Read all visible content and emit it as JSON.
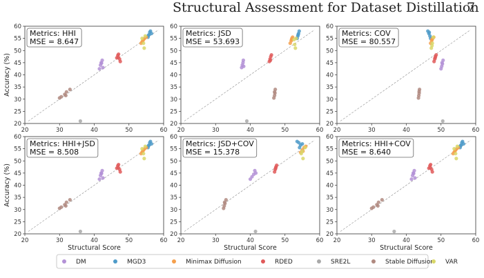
{
  "header": {
    "title": "Structural Assessment for Dataset Distillation",
    "page_number": "7"
  },
  "chart_data": {
    "type": "scatter",
    "xlabel": "Structural Score",
    "ylabel": "Accuracy (%)",
    "xlim": [
      20,
      60
    ],
    "ylim": [
      20,
      60
    ],
    "xticks": [
      20,
      30,
      40,
      50,
      60
    ],
    "yticks": [
      20,
      25,
      30,
      35,
      40,
      45,
      50,
      55,
      60
    ],
    "grid": false,
    "legend_placement": "bottom",
    "reference_line": "dashed diagonal y = x",
    "series_names": [
      "DM",
      "MGD3",
      "Minimax Diffusion",
      "RDED",
      "SRE2L",
      "Stable Diffusion",
      "VAR"
    ],
    "series_colors": [
      "#b391d6",
      "#4f9bc9",
      "#f5a04d",
      "#e05a5a",
      "#a9a9a9",
      "#b08a80",
      "#d9d76a"
    ],
    "panels": [
      {
        "metric_label": "Metrics: HHI",
        "mse_label": "MSE = 8.647",
        "points": {
          "DM": [
            [
              41.5,
              42.5
            ],
            [
              41.8,
              44
            ],
            [
              42,
              45
            ],
            [
              42.3,
              46
            ],
            [
              42.5,
              43
            ],
            [
              42.1,
              44.8
            ]
          ],
          "MGD3": [
            [
              55.5,
              55.5
            ],
            [
              55.8,
              56.5
            ],
            [
              56,
              57.5
            ],
            [
              56.2,
              58
            ],
            [
              56.5,
              57
            ],
            [
              55.6,
              56.2
            ]
          ],
          "Minimax Diffusion": [
            [
              53.5,
              53
            ],
            [
              54,
              54
            ],
            [
              54.5,
              55
            ],
            [
              55,
              55.5
            ],
            [
              54.2,
              54.5
            ],
            [
              53.8,
              53.6
            ]
          ],
          "RDED": [
            [
              46.5,
              47
            ],
            [
              46.8,
              48
            ],
            [
              47,
              48.5
            ],
            [
              47.3,
              46.5
            ],
            [
              47.5,
              45.5
            ],
            [
              46.9,
              47.2
            ]
          ],
          "SRE2L": [
            [
              36,
              21
            ]
          ],
          "Stable Diffusion": [
            [
              30,
              30.5
            ],
            [
              30.5,
              31
            ],
            [
              31.5,
              32
            ],
            [
              32,
              33
            ],
            [
              33,
              34
            ],
            [
              31.8,
              31.5
            ]
          ],
          "VAR": [
            [
              53.8,
              55
            ],
            [
              54.2,
              53
            ],
            [
              54.4,
              51
            ],
            [
              54.7,
              56
            ]
          ]
        }
      },
      {
        "metric_label": "Metrics: JSD",
        "mse_label": "MSE = 53.693",
        "points": {
          "DM": [
            [
              37.5,
              43
            ],
            [
              37.7,
              44
            ],
            [
              37.9,
              45
            ],
            [
              38,
              46
            ],
            [
              38.1,
              43.5
            ]
          ],
          "MGD3": [
            [
              53.5,
              55
            ],
            [
              53.7,
              56
            ],
            [
              53.9,
              57
            ],
            [
              54.1,
              58
            ],
            [
              53.8,
              56.5
            ]
          ],
          "Minimax Diffusion": [
            [
              51.5,
              53
            ],
            [
              51.8,
              54
            ],
            [
              52,
              55
            ],
            [
              52.2,
              55.5
            ],
            [
              51.9,
              54.5
            ]
          ],
          "RDED": [
            [
              45.5,
              45.5
            ],
            [
              45.7,
              46.5
            ],
            [
              45.9,
              47.5
            ],
            [
              46.1,
              48.2
            ],
            [
              45.8,
              46
            ]
          ],
          "SRE2L": [
            [
              39,
              21
            ]
          ],
          "Stable Diffusion": [
            [
              46.8,
              30.5
            ],
            [
              47,
              31.5
            ],
            [
              47.1,
              32.5
            ],
            [
              47.2,
              34
            ],
            [
              47,
              33
            ]
          ],
          "VAR": [
            [
              53,
              51
            ],
            [
              52.8,
              52.5
            ],
            [
              53.2,
              55
            ],
            [
              52.6,
              54.5
            ]
          ]
        }
      },
      {
        "metric_label": "Metrics: COV",
        "mse_label": "MSE = 80.557",
        "points": {
          "DM": [
            [
              50,
              42.5
            ],
            [
              50.2,
              43.5
            ],
            [
              50.4,
              44.5
            ],
            [
              50.6,
              46
            ],
            [
              50.3,
              45
            ]
          ],
          "MGD3": [
            [
              46.2,
              58
            ],
            [
              46.5,
              57
            ],
            [
              46.8,
              56
            ],
            [
              47,
              55
            ],
            [
              46.6,
              57.5
            ]
          ],
          "Minimax Diffusion": [
            [
              47,
              53
            ],
            [
              47.3,
              54
            ],
            [
              47.6,
              55
            ],
            [
              47.9,
              55.5
            ],
            [
              47.4,
              54.5
            ]
          ],
          "RDED": [
            [
              48,
              45.5
            ],
            [
              48.2,
              46.5
            ],
            [
              48.4,
              47.5
            ],
            [
              48.6,
              48.2
            ],
            [
              48.3,
              47
            ]
          ],
          "SRE2L": [
            [
              50.5,
              21
            ]
          ],
          "Stable Diffusion": [
            [
              43.5,
              30.5
            ],
            [
              43.6,
              31.5
            ],
            [
              43.7,
              32.5
            ],
            [
              43.8,
              34
            ],
            [
              43.7,
              33.2
            ]
          ],
          "VAR": [
            [
              47.2,
              51
            ],
            [
              47.5,
              53
            ],
            [
              47.8,
              55.5
            ],
            [
              47.4,
              52
            ]
          ]
        }
      },
      {
        "metric_label": "Metrics: HHI+JSD",
        "mse_label": "MSE = 8.508",
        "points": {
          "DM": [
            [
              41.5,
              42.5
            ],
            [
              41.8,
              44
            ],
            [
              42,
              45
            ],
            [
              42.3,
              46
            ],
            [
              42.5,
              43
            ],
            [
              42.1,
              44.8
            ]
          ],
          "MGD3": [
            [
              55.5,
              55.5
            ],
            [
              55.8,
              56.5
            ],
            [
              56,
              57.5
            ],
            [
              56.2,
              58
            ],
            [
              56.5,
              57
            ],
            [
              55.6,
              56.2
            ]
          ],
          "Minimax Diffusion": [
            [
              53.5,
              53
            ],
            [
              54,
              54
            ],
            [
              54.5,
              55
            ],
            [
              55,
              55.5
            ],
            [
              54.2,
              54.5
            ],
            [
              53.8,
              53.6
            ]
          ],
          "RDED": [
            [
              46.5,
              47
            ],
            [
              46.8,
              48
            ],
            [
              47,
              48.5
            ],
            [
              47.3,
              46.5
            ],
            [
              47.5,
              45.5
            ],
            [
              46.9,
              47.2
            ]
          ],
          "SRE2L": [
            [
              36,
              21
            ]
          ],
          "Stable Diffusion": [
            [
              30,
              30.5
            ],
            [
              30.5,
              31
            ],
            [
              31.5,
              32
            ],
            [
              32,
              33
            ],
            [
              33,
              34
            ],
            [
              31.8,
              31.5
            ]
          ],
          "VAR": [
            [
              53.8,
              55
            ],
            [
              54.2,
              53
            ],
            [
              54.4,
              51
            ],
            [
              54.7,
              56
            ]
          ]
        }
      },
      {
        "metric_label": "Metrics: JSD+COV",
        "mse_label": "MSE = 15.378",
        "points": {
          "DM": [
            [
              40,
              42.5
            ],
            [
              40.5,
              43.5
            ],
            [
              41,
              44.5
            ],
            [
              41.3,
              46
            ],
            [
              41.6,
              45
            ]
          ],
          "MGD3": [
            [
              53.5,
              58
            ],
            [
              54,
              57.5
            ],
            [
              54.5,
              56.5
            ],
            [
              55,
              57
            ],
            [
              54.2,
              55.5
            ]
          ],
          "Minimax Diffusion": [
            [
              54.5,
              53.5
            ],
            [
              55,
              54.5
            ],
            [
              55.5,
              55.5
            ],
            [
              56,
              56
            ],
            [
              55.2,
              54
            ]
          ],
          "RDED": [
            [
              47,
              45.5
            ],
            [
              47.2,
              46.5
            ],
            [
              47.4,
              47.5
            ],
            [
              47.6,
              48.2
            ],
            [
              47.3,
              47
            ]
          ],
          "SRE2L": [
            [
              41.5,
              21
            ]
          ],
          "Stable Diffusion": [
            [
              32.3,
              30.5
            ],
            [
              32.5,
              31.5
            ],
            [
              32.7,
              32.5
            ],
            [
              33,
              34
            ],
            [
              32.6,
              33
            ]
          ],
          "VAR": [
            [
              55.2,
              51
            ],
            [
              54.7,
              53
            ],
            [
              55.8,
              55.5
            ],
            [
              55,
              54
            ]
          ]
        }
      },
      {
        "metric_label": "Metrics: HHI+COV",
        "mse_label": "MSE = 8.640",
        "points": {
          "DM": [
            [
              41.5,
              42.5
            ],
            [
              41.8,
              44
            ],
            [
              42,
              45
            ],
            [
              42.3,
              46
            ],
            [
              42.5,
              43
            ],
            [
              42.1,
              44.8
            ]
          ],
          "MGD3": [
            [
              55.5,
              55.5
            ],
            [
              55.8,
              56.5
            ],
            [
              56,
              57.5
            ],
            [
              56.2,
              58
            ],
            [
              56.5,
              57
            ],
            [
              55.6,
              56.2
            ]
          ],
          "Minimax Diffusion": [
            [
              53.5,
              53
            ],
            [
              54,
              54
            ],
            [
              54.5,
              55
            ],
            [
              55,
              55.5
            ],
            [
              54.2,
              54.5
            ],
            [
              53.8,
              53.6
            ]
          ],
          "RDED": [
            [
              46.5,
              47
            ],
            [
              46.8,
              48
            ],
            [
              47,
              48.5
            ],
            [
              47.3,
              46.5
            ],
            [
              47.5,
              45.5
            ],
            [
              46.9,
              47.2
            ]
          ],
          "SRE2L": [
            [
              36.5,
              21
            ]
          ],
          "Stable Diffusion": [
            [
              30,
              30.5
            ],
            [
              30.5,
              31
            ],
            [
              31.5,
              32
            ],
            [
              32,
              33
            ],
            [
              33,
              34
            ],
            [
              31.8,
              31.5
            ]
          ],
          "VAR": [
            [
              53.8,
              55
            ],
            [
              54.2,
              53
            ],
            [
              54.4,
              51
            ],
            [
              54.7,
              56
            ]
          ]
        }
      }
    ]
  }
}
